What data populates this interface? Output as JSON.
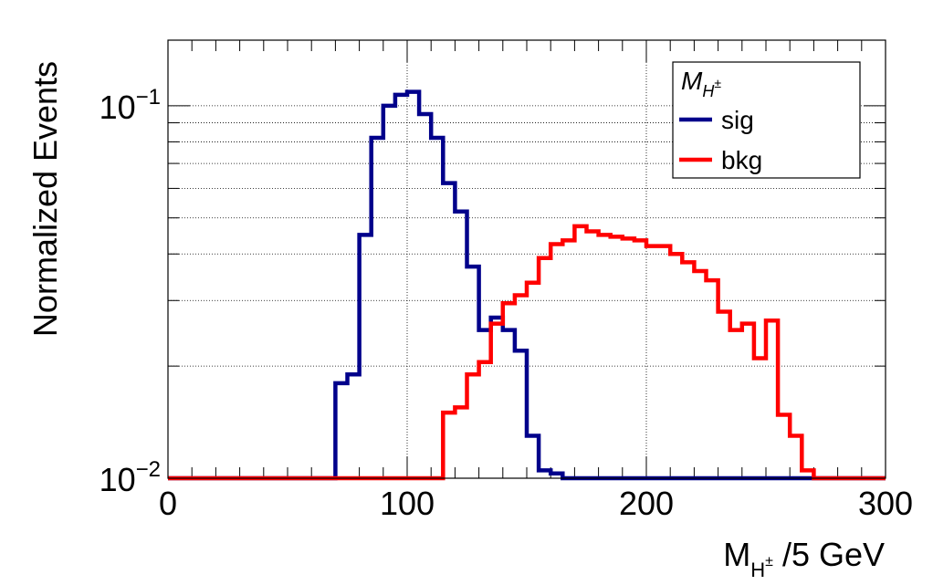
{
  "chart_data": {
    "type": "line",
    "style": "step histogram",
    "y_scale": "log",
    "grid": true,
    "legend_position": "top-right",
    "legend_title": "M_{H^{±}}",
    "xlabel": "M_{H^{±}} /5 GeV",
    "ylabel": "Normalized Events",
    "xlim": [
      0,
      300
    ],
    "ylim": [
      0.01,
      0.15
    ],
    "x_tick_labels": [
      "0",
      "100",
      "200",
      "300"
    ],
    "y_tick_labels": [
      {
        "value": 0.1,
        "base": "10",
        "exp": "−1"
      },
      {
        "value": 0.01,
        "base": "10",
        "exp": "−2"
      }
    ],
    "bin_width": 5,
    "series": [
      {
        "name": "sig",
        "color": "#00008b",
        "bins": [
          [
            70,
            0.018
          ],
          [
            75,
            0.019
          ],
          [
            80,
            0.045
          ],
          [
            85,
            0.082
          ],
          [
            90,
            0.1
          ],
          [
            95,
            0.107
          ],
          [
            100,
            0.109
          ],
          [
            105,
            0.095
          ],
          [
            110,
            0.082
          ],
          [
            115,
            0.062
          ],
          [
            120,
            0.052
          ],
          [
            125,
            0.037
          ],
          [
            130,
            0.025
          ],
          [
            135,
            0.027
          ],
          [
            140,
            0.025
          ],
          [
            145,
            0.022
          ],
          [
            150,
            0.013
          ],
          [
            155,
            0.0105
          ],
          [
            160,
            0.0103
          ],
          [
            165,
            0.01
          ]
        ]
      },
      {
        "name": "bkg",
        "color": "#ff0000",
        "bins": [
          [
            115,
            0.015
          ],
          [
            120,
            0.0155
          ],
          [
            125,
            0.019
          ],
          [
            130,
            0.0205
          ],
          [
            135,
            0.026
          ],
          [
            140,
            0.0295
          ],
          [
            145,
            0.031
          ],
          [
            150,
            0.0335
          ],
          [
            155,
            0.039
          ],
          [
            160,
            0.0425
          ],
          [
            165,
            0.0435
          ],
          [
            170,
            0.0475
          ],
          [
            175,
            0.046
          ],
          [
            180,
            0.045
          ],
          [
            185,
            0.0445
          ],
          [
            190,
            0.044
          ],
          [
            195,
            0.0435
          ],
          [
            200,
            0.042
          ],
          [
            205,
            0.042
          ],
          [
            210,
            0.04
          ],
          [
            215,
            0.038
          ],
          [
            220,
            0.036
          ],
          [
            225,
            0.034
          ],
          [
            230,
            0.028
          ],
          [
            235,
            0.025
          ],
          [
            240,
            0.026
          ],
          [
            245,
            0.021
          ],
          [
            250,
            0.0265
          ],
          [
            255,
            0.0148
          ],
          [
            260,
            0.013
          ],
          [
            265,
            0.0105
          ]
        ]
      }
    ]
  }
}
